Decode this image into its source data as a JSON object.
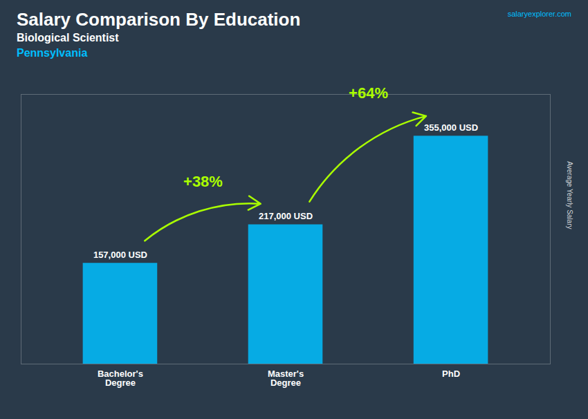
{
  "chart_data": {
    "type": "bar",
    "title": "Salary Comparison By Education",
    "subtitle": [
      "Biological Scientist",
      "Pennsylvania"
    ],
    "watermark": "salaryexplorer.com",
    "ylabel": "Average Yearly Salary",
    "categories": [
      "Bachelor's\nDegree",
      "Master's\nDegree",
      "PhD"
    ],
    "values": [
      157000,
      217000,
      355000
    ],
    "value_labels": [
      "157,000 USD",
      "217,000 USD",
      "355,000 USD"
    ],
    "data_labels": true,
    "color": "#00BFFF",
    "ylim": [
      0,
      420000
    ],
    "tick_labels": "x",
    "grid": false,
    "annotations": [
      {
        "text": "+38%",
        "color": "#AAFF00"
      },
      {
        "text": "+64%",
        "color": "#AAFF00"
      }
    ]
  }
}
